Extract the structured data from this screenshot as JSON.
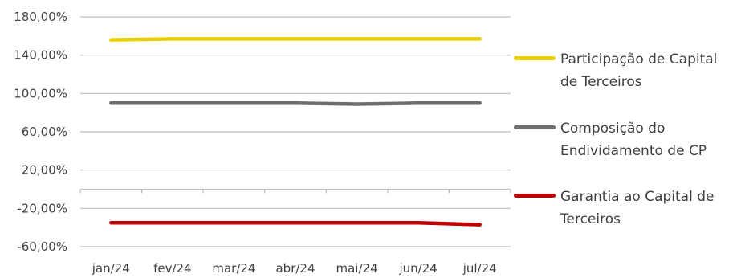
{
  "chart_data": {
    "type": "line",
    "title": "",
    "xlabel": "",
    "ylabel": "",
    "categories": [
      "jan/24",
      "fev/24",
      "mar/24",
      "abr/24",
      "mai/24",
      "jun/24",
      "jul/24"
    ],
    "y_ticks": [
      "180,00%",
      "140,00%",
      "100,00%",
      "60,00%",
      "20,00%",
      "-20,00%",
      "-60,00%"
    ],
    "y_tick_values": [
      180,
      140,
      100,
      60,
      20,
      -20,
      -60
    ],
    "ylim": [
      -60,
      180
    ],
    "grid": true,
    "legend_position": "right",
    "series": [
      {
        "name": "Participação de Capital de Terceiros",
        "name_lines": [
          "Participação de Capital",
          "de Terceiros"
        ],
        "color": "#E8D000",
        "values": [
          156,
          157,
          157,
          157,
          157,
          157,
          157
        ]
      },
      {
        "name": "Composição do Endividamento de CP",
        "name_lines": [
          "Composição do",
          "Endividamento de CP"
        ],
        "color": "#6E6E6E",
        "values": [
          90,
          90,
          90,
          90,
          89,
          90,
          90
        ]
      },
      {
        "name": "Garantia ao Capital de Terceiros",
        "name_lines": [
          "Garantia ao Capital de",
          "Terceiros"
        ],
        "color": "#C00000",
        "values": [
          -35,
          -35,
          -35,
          -35,
          -35,
          -35,
          -37
        ]
      }
    ]
  }
}
